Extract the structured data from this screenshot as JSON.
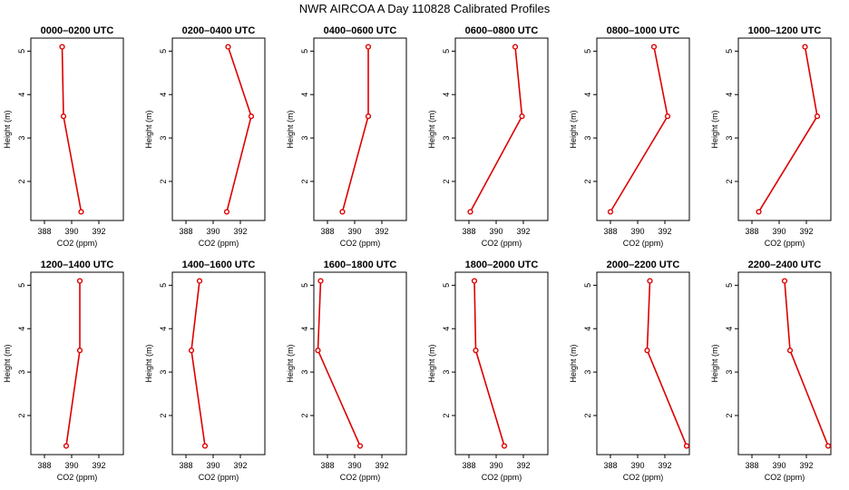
{
  "figure": {
    "title": "NWR AIRCOA A  Day 110828  Calibrated Profiles"
  },
  "colors": {
    "series": "#dd0000",
    "axis": "#000000"
  },
  "chart_data": [
    {
      "type": "line",
      "title": "0000–0200 UTC",
      "xlabel": "CO2 (ppm)",
      "ylabel": "Height (m)",
      "xlim": [
        387,
        393.8
      ],
      "ylim": [
        1.1,
        5.3
      ],
      "xticks": [
        388,
        390,
        392
      ],
      "yticks": [
        2,
        3,
        4,
        5
      ],
      "x": [
        389.3,
        389.4,
        390.7
      ],
      "y": [
        5.1,
        3.5,
        1.3
      ]
    },
    {
      "type": "line",
      "title": "0200–0400 UTC",
      "xlabel": "CO2 (ppm)",
      "ylabel": "Height (m)",
      "xlim": [
        387,
        393.8
      ],
      "ylim": [
        1.1,
        5.3
      ],
      "xticks": [
        388,
        390,
        392
      ],
      "yticks": [
        2,
        3,
        4,
        5
      ],
      "x": [
        391.1,
        392.8,
        391.0
      ],
      "y": [
        5.1,
        3.5,
        1.3
      ]
    },
    {
      "type": "line",
      "title": "0400–0600 UTC",
      "xlabel": "CO2 (ppm)",
      "ylabel": "Height (m)",
      "xlim": [
        387,
        393.8
      ],
      "ylim": [
        1.1,
        5.3
      ],
      "xticks": [
        388,
        390,
        392
      ],
      "yticks": [
        2,
        3,
        4,
        5
      ],
      "x": [
        391.0,
        391.0,
        389.1
      ],
      "y": [
        5.1,
        3.5,
        1.3
      ]
    },
    {
      "type": "line",
      "title": "0600–0800 UTC",
      "xlabel": "CO2 (ppm)",
      "ylabel": "Height (m)",
      "xlim": [
        387,
        393.8
      ],
      "ylim": [
        1.1,
        5.3
      ],
      "xticks": [
        388,
        390,
        392
      ],
      "yticks": [
        2,
        3,
        4,
        5
      ],
      "x": [
        391.4,
        391.9,
        388.1
      ],
      "y": [
        5.1,
        3.5,
        1.3
      ]
    },
    {
      "type": "line",
      "title": "0800–1000 UTC",
      "xlabel": "CO2 (ppm)",
      "ylabel": "Height (m)",
      "xlim": [
        387,
        393.8
      ],
      "ylim": [
        1.1,
        5.3
      ],
      "xticks": [
        388,
        390,
        392
      ],
      "yticks": [
        2,
        3,
        4,
        5
      ],
      "x": [
        391.2,
        392.2,
        388.0
      ],
      "y": [
        5.1,
        3.5,
        1.3
      ]
    },
    {
      "type": "line",
      "title": "1000–1200 UTC",
      "xlabel": "CO2 (ppm)",
      "ylabel": "Height (m)",
      "xlim": [
        387,
        393.8
      ],
      "ylim": [
        1.1,
        5.3
      ],
      "xticks": [
        388,
        390,
        392
      ],
      "yticks": [
        2,
        3,
        4,
        5
      ],
      "x": [
        391.9,
        392.8,
        388.5
      ],
      "y": [
        5.1,
        3.5,
        1.3
      ]
    },
    {
      "type": "line",
      "title": "1200–1400 UTC",
      "xlabel": "CO2 (ppm)",
      "ylabel": "Height (m)",
      "xlim": [
        387,
        393.8
      ],
      "ylim": [
        1.1,
        5.3
      ],
      "xticks": [
        388,
        390,
        392
      ],
      "yticks": [
        2,
        3,
        4,
        5
      ],
      "x": [
        390.6,
        390.6,
        389.6
      ],
      "y": [
        5.1,
        3.5,
        1.3
      ]
    },
    {
      "type": "line",
      "title": "1400–1600 UTC",
      "xlabel": "CO2 (ppm)",
      "ylabel": "Height (m)",
      "xlim": [
        387,
        393.8
      ],
      "ylim": [
        1.1,
        5.3
      ],
      "xticks": [
        388,
        390,
        392
      ],
      "yticks": [
        2,
        3,
        4,
        5
      ],
      "x": [
        389.0,
        388.4,
        389.4
      ],
      "y": [
        5.1,
        3.5,
        1.3
      ]
    },
    {
      "type": "line",
      "title": "1600–1800 UTC",
      "xlabel": "CO2 (ppm)",
      "ylabel": "Height (m)",
      "xlim": [
        387,
        393.8
      ],
      "ylim": [
        1.1,
        5.3
      ],
      "xticks": [
        388,
        390,
        392
      ],
      "yticks": [
        2,
        3,
        4,
        5
      ],
      "x": [
        387.5,
        387.3,
        390.4
      ],
      "y": [
        5.1,
        3.5,
        1.3
      ]
    },
    {
      "type": "line",
      "title": "1800–2000 UTC",
      "xlabel": "CO2 (ppm)",
      "ylabel": "Height (m)",
      "xlim": [
        387,
        393.8
      ],
      "ylim": [
        1.1,
        5.3
      ],
      "xticks": [
        388,
        390,
        392
      ],
      "yticks": [
        2,
        3,
        4,
        5
      ],
      "x": [
        388.4,
        388.5,
        390.6
      ],
      "y": [
        5.1,
        3.5,
        1.3
      ]
    },
    {
      "type": "line",
      "title": "2000–2200 UTC",
      "xlabel": "CO2 (ppm)",
      "ylabel": "Height (m)",
      "xlim": [
        387,
        393.8
      ],
      "ylim": [
        1.1,
        5.3
      ],
      "xticks": [
        388,
        390,
        392
      ],
      "yticks": [
        2,
        3,
        4,
        5
      ],
      "x": [
        390.9,
        390.7,
        393.6
      ],
      "y": [
        5.1,
        3.5,
        1.3
      ]
    },
    {
      "type": "line",
      "title": "2200–2400 UTC",
      "xlabel": "CO2 (ppm)",
      "ylabel": "Height (m)",
      "xlim": [
        387,
        393.8
      ],
      "ylim": [
        1.1,
        5.3
      ],
      "xticks": [
        388,
        390,
        392
      ],
      "yticks": [
        2,
        3,
        4,
        5
      ],
      "x": [
        390.4,
        390.8,
        393.6
      ],
      "y": [
        5.1,
        3.5,
        1.3
      ]
    }
  ]
}
